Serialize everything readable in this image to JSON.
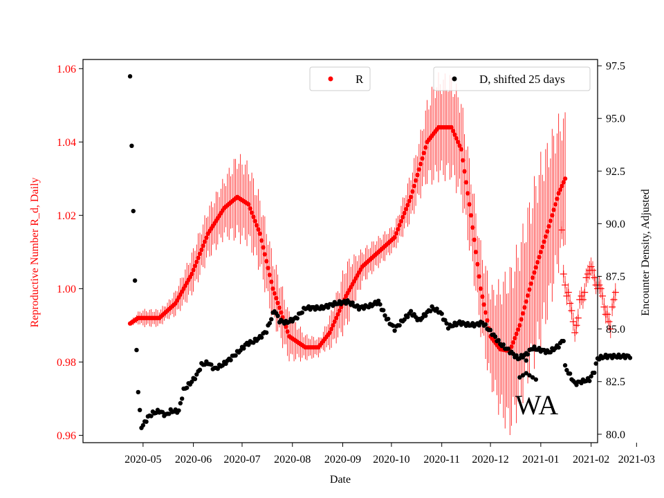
{
  "chart_data": {
    "type": "line",
    "title": "",
    "xlabel": "Date",
    "ylabel_left": "Reproductive Number R_d, Daily",
    "ylabel_right": "Encounter Density, Adjusted",
    "annotation": "WA",
    "x_ticks": [
      "2020-05",
      "2020-06",
      "2020-07",
      "2020-08",
      "2020-09",
      "2020-10",
      "2020-11",
      "2020-12",
      "2021-01",
      "2021-02",
      "2021-03"
    ],
    "y_left_ticks": [
      "0.96",
      "0.98",
      "1.00",
      "1.02",
      "1.04",
      "1.06"
    ],
    "y_right_ticks": [
      "80.0",
      "82.5",
      "85.0",
      "87.5",
      "90.0",
      "92.5",
      "95.0",
      "97.5"
    ],
    "ylim_left": [
      0.958,
      1.0625
    ],
    "ylim_right": [
      79.6,
      97.8
    ],
    "xlim_days": [
      -37,
      280
    ],
    "x_origin": "2020-05-01",
    "colors": {
      "R": "#ff0000",
      "D": "#000000",
      "left_axis": "#ff0000",
      "right_axis": "#000000"
    },
    "legend_R": {
      "label": "R",
      "position": "upper-center"
    },
    "legend_D": {
      "label": "D, shifted 25 days",
      "position": "upper-right"
    },
    "series_R": {
      "name": "R",
      "marker": "dot",
      "knots": [
        [
          -8,
          0.9905
        ],
        [
          -3,
          0.992
        ],
        [
          10,
          0.992
        ],
        [
          20,
          0.996
        ],
        [
          30,
          1.004
        ],
        [
          40,
          1.015
        ],
        [
          50,
          1.022
        ],
        [
          58,
          1.025
        ],
        [
          65,
          1.023
        ],
        [
          72,
          1.015
        ],
        [
          80,
          1.0
        ],
        [
          90,
          0.987
        ],
        [
          100,
          0.984
        ],
        [
          108,
          0.984
        ],
        [
          115,
          0.988
        ],
        [
          125,
          0.998
        ],
        [
          135,
          1.006
        ],
        [
          145,
          1.01
        ],
        [
          155,
          1.014
        ],
        [
          165,
          1.025
        ],
        [
          175,
          1.04
        ],
        [
          182,
          1.044
        ],
        [
          190,
          1.044
        ],
        [
          196,
          1.038
        ],
        [
          202,
          1.02
        ],
        [
          208,
          1.0
        ],
        [
          214,
          0.987
        ],
        [
          220,
          0.9835
        ],
        [
          226,
          0.983
        ],
        [
          232,
          0.99
        ],
        [
          240,
          1.003
        ],
        [
          250,
          1.017
        ],
        [
          256,
          1.026
        ],
        [
          260,
          1.03
        ]
      ],
      "err_knots": [
        [
          -8,
          0.0005
        ],
        [
          0,
          0.002
        ],
        [
          15,
          0.002
        ],
        [
          30,
          0.005
        ],
        [
          50,
          0.007
        ],
        [
          58,
          0.01
        ],
        [
          70,
          0.009
        ],
        [
          85,
          0.007
        ],
        [
          100,
          0.003
        ],
        [
          110,
          0.002
        ],
        [
          125,
          0.008
        ],
        [
          135,
          0.004
        ],
        [
          155,
          0.003
        ],
        [
          170,
          0.007
        ],
        [
          180,
          0.012
        ],
        [
          195,
          0.012
        ],
        [
          205,
          0.01
        ],
        [
          215,
          0.012
        ],
        [
          225,
          0.019
        ],
        [
          235,
          0.02
        ],
        [
          245,
          0.022
        ],
        [
          255,
          0.018
        ],
        [
          260,
          0.015
        ]
      ]
    },
    "series_R_forecast": {
      "name": "R forecast",
      "marker": "plus",
      "points": [
        [
          258,
          1.016
        ],
        [
          259,
          1.004
        ],
        [
          260,
          1.001
        ],
        [
          261,
          0.998
        ],
        [
          262,
          0.999
        ],
        [
          263,
          0.996
        ],
        [
          264,
          0.994
        ],
        [
          265,
          0.991
        ],
        [
          266,
          0.988
        ],
        [
          267,
          0.99
        ],
        [
          268,
          0.992
        ],
        [
          269,
          0.997
        ],
        [
          270,
          0.998
        ],
        [
          271,
          0.997
        ],
        [
          272,
          0.999
        ],
        [
          273,
          1.003
        ],
        [
          274,
          1.004
        ],
        [
          275,
          1.005
        ],
        [
          276,
          1.006
        ],
        [
          277,
          1.005
        ],
        [
          278,
          1.003
        ],
        [
          279,
          1.001
        ],
        [
          280,
          1.0
        ],
        [
          281,
          1.001
        ],
        [
          282,
          1.0
        ],
        [
          283,
          0.998
        ],
        [
          284,
          0.995
        ],
        [
          285,
          0.993
        ],
        [
          286,
          0.993
        ],
        [
          287,
          0.991
        ],
        [
          288,
          0.989
        ],
        [
          289,
          0.995
        ],
        [
          290,
          0.997
        ],
        [
          291,
          0.999
        ]
      ],
      "err": 0.0025
    },
    "series_D": {
      "name": "D, shifted 25 days",
      "marker": "dot",
      "knots": [
        [
          -8,
          97.0
        ],
        [
          -7,
          93.7
        ],
        [
          -6,
          90.6
        ],
        [
          -5,
          87.3
        ],
        [
          -4,
          84.0
        ],
        [
          -3,
          82.0
        ],
        [
          -1,
          80.3
        ],
        [
          3,
          80.8
        ],
        [
          6,
          81.0
        ],
        [
          10,
          81.1
        ],
        [
          14,
          80.9
        ],
        [
          17,
          81.1
        ],
        [
          22,
          81.1
        ],
        [
          25,
          82.1
        ],
        [
          30,
          82.5
        ],
        [
          33,
          82.8
        ],
        [
          36,
          83.3
        ],
        [
          40,
          83.4
        ],
        [
          44,
          83.1
        ],
        [
          49,
          83.3
        ],
        [
          54,
          83.6
        ],
        [
          60,
          84.0
        ],
        [
          64,
          84.3
        ],
        [
          68,
          84.4
        ],
        [
          72,
          84.6
        ],
        [
          76,
          84.9
        ],
        [
          81,
          85.9
        ],
        [
          84,
          85.4
        ],
        [
          88,
          85.3
        ],
        [
          94,
          85.5
        ],
        [
          100,
          86.0
        ],
        [
          110,
          86.0
        ],
        [
          118,
          86.2
        ],
        [
          126,
          86.3
        ],
        [
          133,
          86.0
        ],
        [
          140,
          86.1
        ],
        [
          145,
          86.3
        ],
        [
          150,
          85.5
        ],
        [
          155,
          85.0
        ],
        [
          160,
          85.4
        ],
        [
          165,
          85.8
        ],
        [
          170,
          85.4
        ],
        [
          178,
          86.0
        ],
        [
          183,
          85.8
        ],
        [
          188,
          85.1
        ],
        [
          195,
          85.3
        ],
        [
          200,
          85.2
        ],
        [
          205,
          85.2
        ],
        [
          209,
          85.3
        ],
        [
          215,
          84.8
        ],
        [
          220,
          84.3
        ],
        [
          225,
          84.0
        ],
        [
          231,
          83.6
        ],
        [
          236,
          83.8
        ],
        [
          240,
          84.1
        ],
        [
          245,
          84.0
        ],
        [
          250,
          83.9
        ],
        [
          256,
          84.2
        ],
        [
          259,
          84.5
        ],
        [
          260,
          83.2
        ],
        [
          263,
          82.8
        ],
        [
          266,
          82.4
        ],
        [
          270,
          82.5
        ],
        [
          275,
          82.6
        ],
        [
          278,
          83.0
        ],
        [
          280,
          83.6
        ],
        [
          285,
          83.7
        ],
        [
          300,
          83.7
        ]
      ],
      "outliers": [
        [
          232,
          82.7
        ],
        [
          234,
          82.8
        ],
        [
          236,
          82.9
        ],
        [
          238,
          82.8
        ],
        [
          240,
          82.7
        ],
        [
          242,
          82.6
        ],
        [
          236,
          83.5
        ]
      ]
    }
  }
}
